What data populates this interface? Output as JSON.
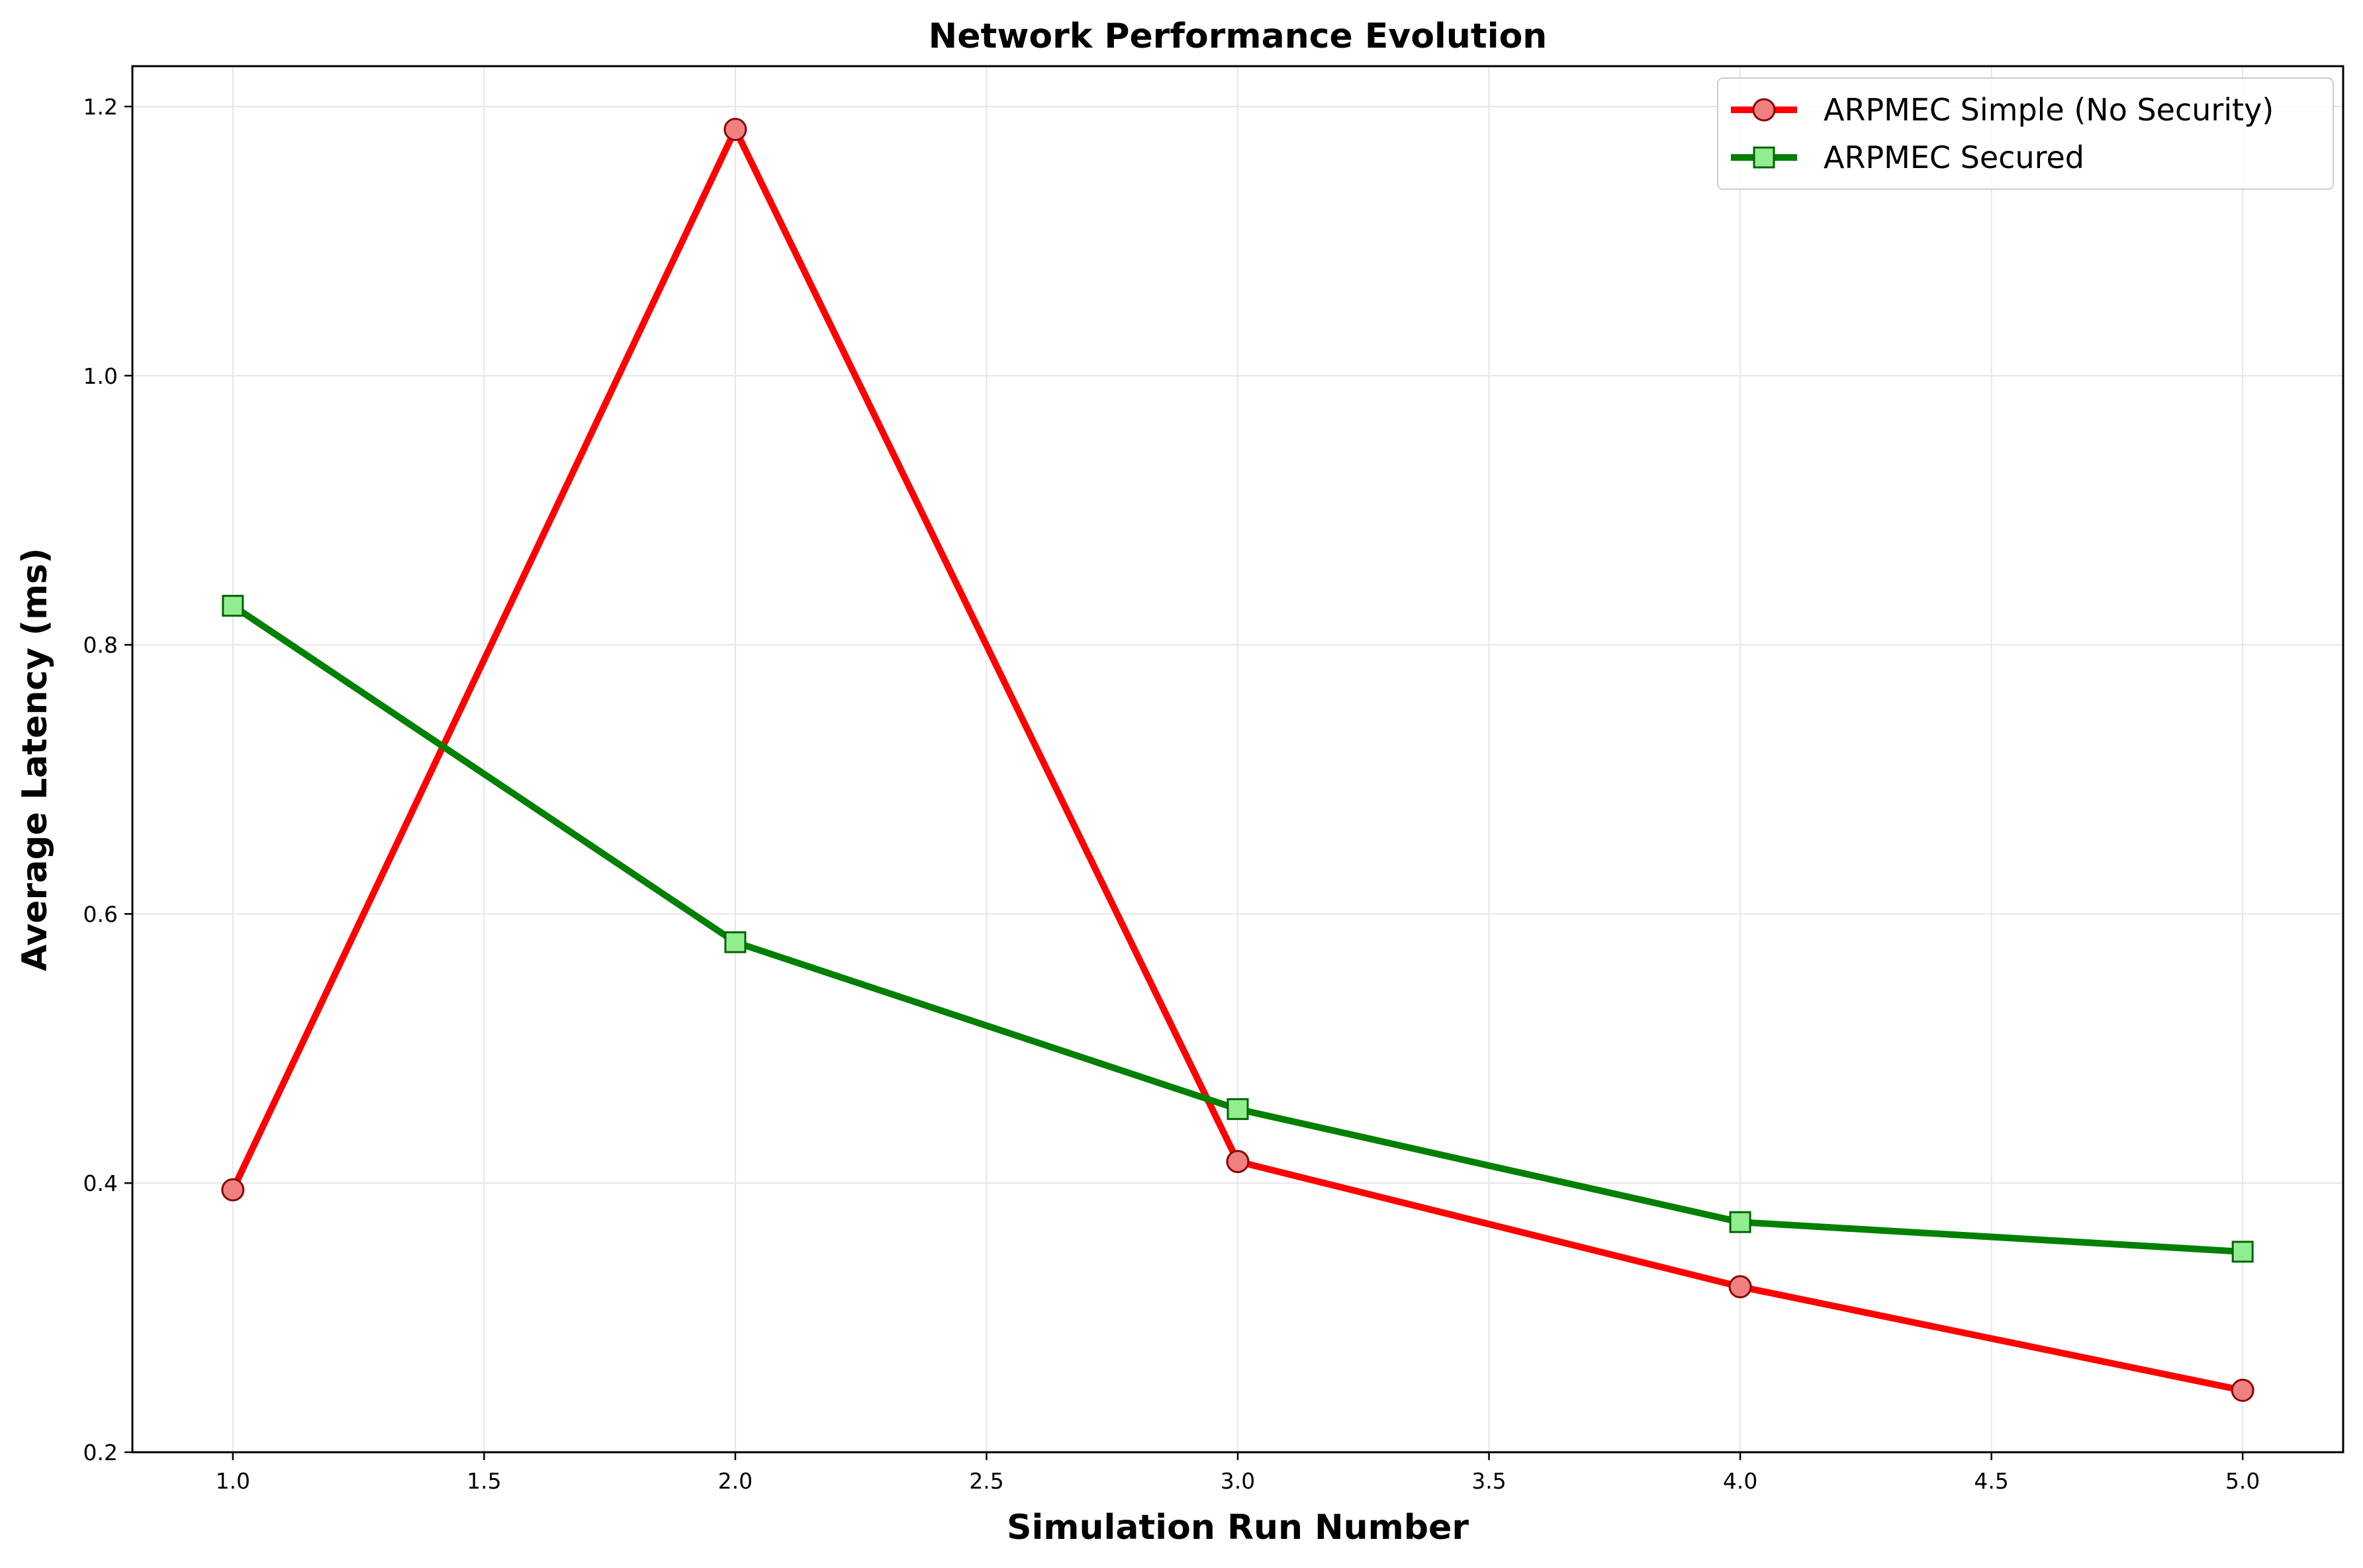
{
  "chart_data": {
    "type": "line",
    "title": "Network Performance Evolution",
    "xlabel": "Simulation Run Number",
    "ylabel": "Average Latency (ms)",
    "xlim": [
      0.8,
      5.2
    ],
    "ylim": [
      0.2,
      1.23
    ],
    "xticks": [
      1.0,
      1.5,
      2.0,
      2.5,
      3.0,
      3.5,
      4.0,
      4.5,
      5.0
    ],
    "yticks": [
      0.2,
      0.4,
      0.6,
      0.8,
      1.0,
      1.2
    ],
    "xtick_labels": [
      "1.0",
      "1.5",
      "2.0",
      "2.5",
      "3.0",
      "3.5",
      "4.0",
      "4.5",
      "5.0"
    ],
    "ytick_labels": [
      "0.2",
      "0.4",
      "0.6",
      "0.8",
      "1.0",
      "1.2"
    ],
    "grid": true,
    "legend_position": "top-right",
    "x": [
      1,
      2,
      3,
      4,
      5
    ],
    "series": [
      {
        "name": "ARPMEC Simple (No Security)",
        "values": [
          0.395,
          1.183,
          0.416,
          0.323,
          0.246
        ],
        "color": "#ff0000",
        "marker": "circle",
        "marker_fill": "#f08080",
        "marker_edge": "#8b0000"
      },
      {
        "name": "ARPMEC Secured",
        "values": [
          0.829,
          0.579,
          0.455,
          0.371,
          0.349
        ],
        "color": "#008000",
        "marker": "square",
        "marker_fill": "#90ee90",
        "marker_edge": "#006400"
      }
    ]
  }
}
